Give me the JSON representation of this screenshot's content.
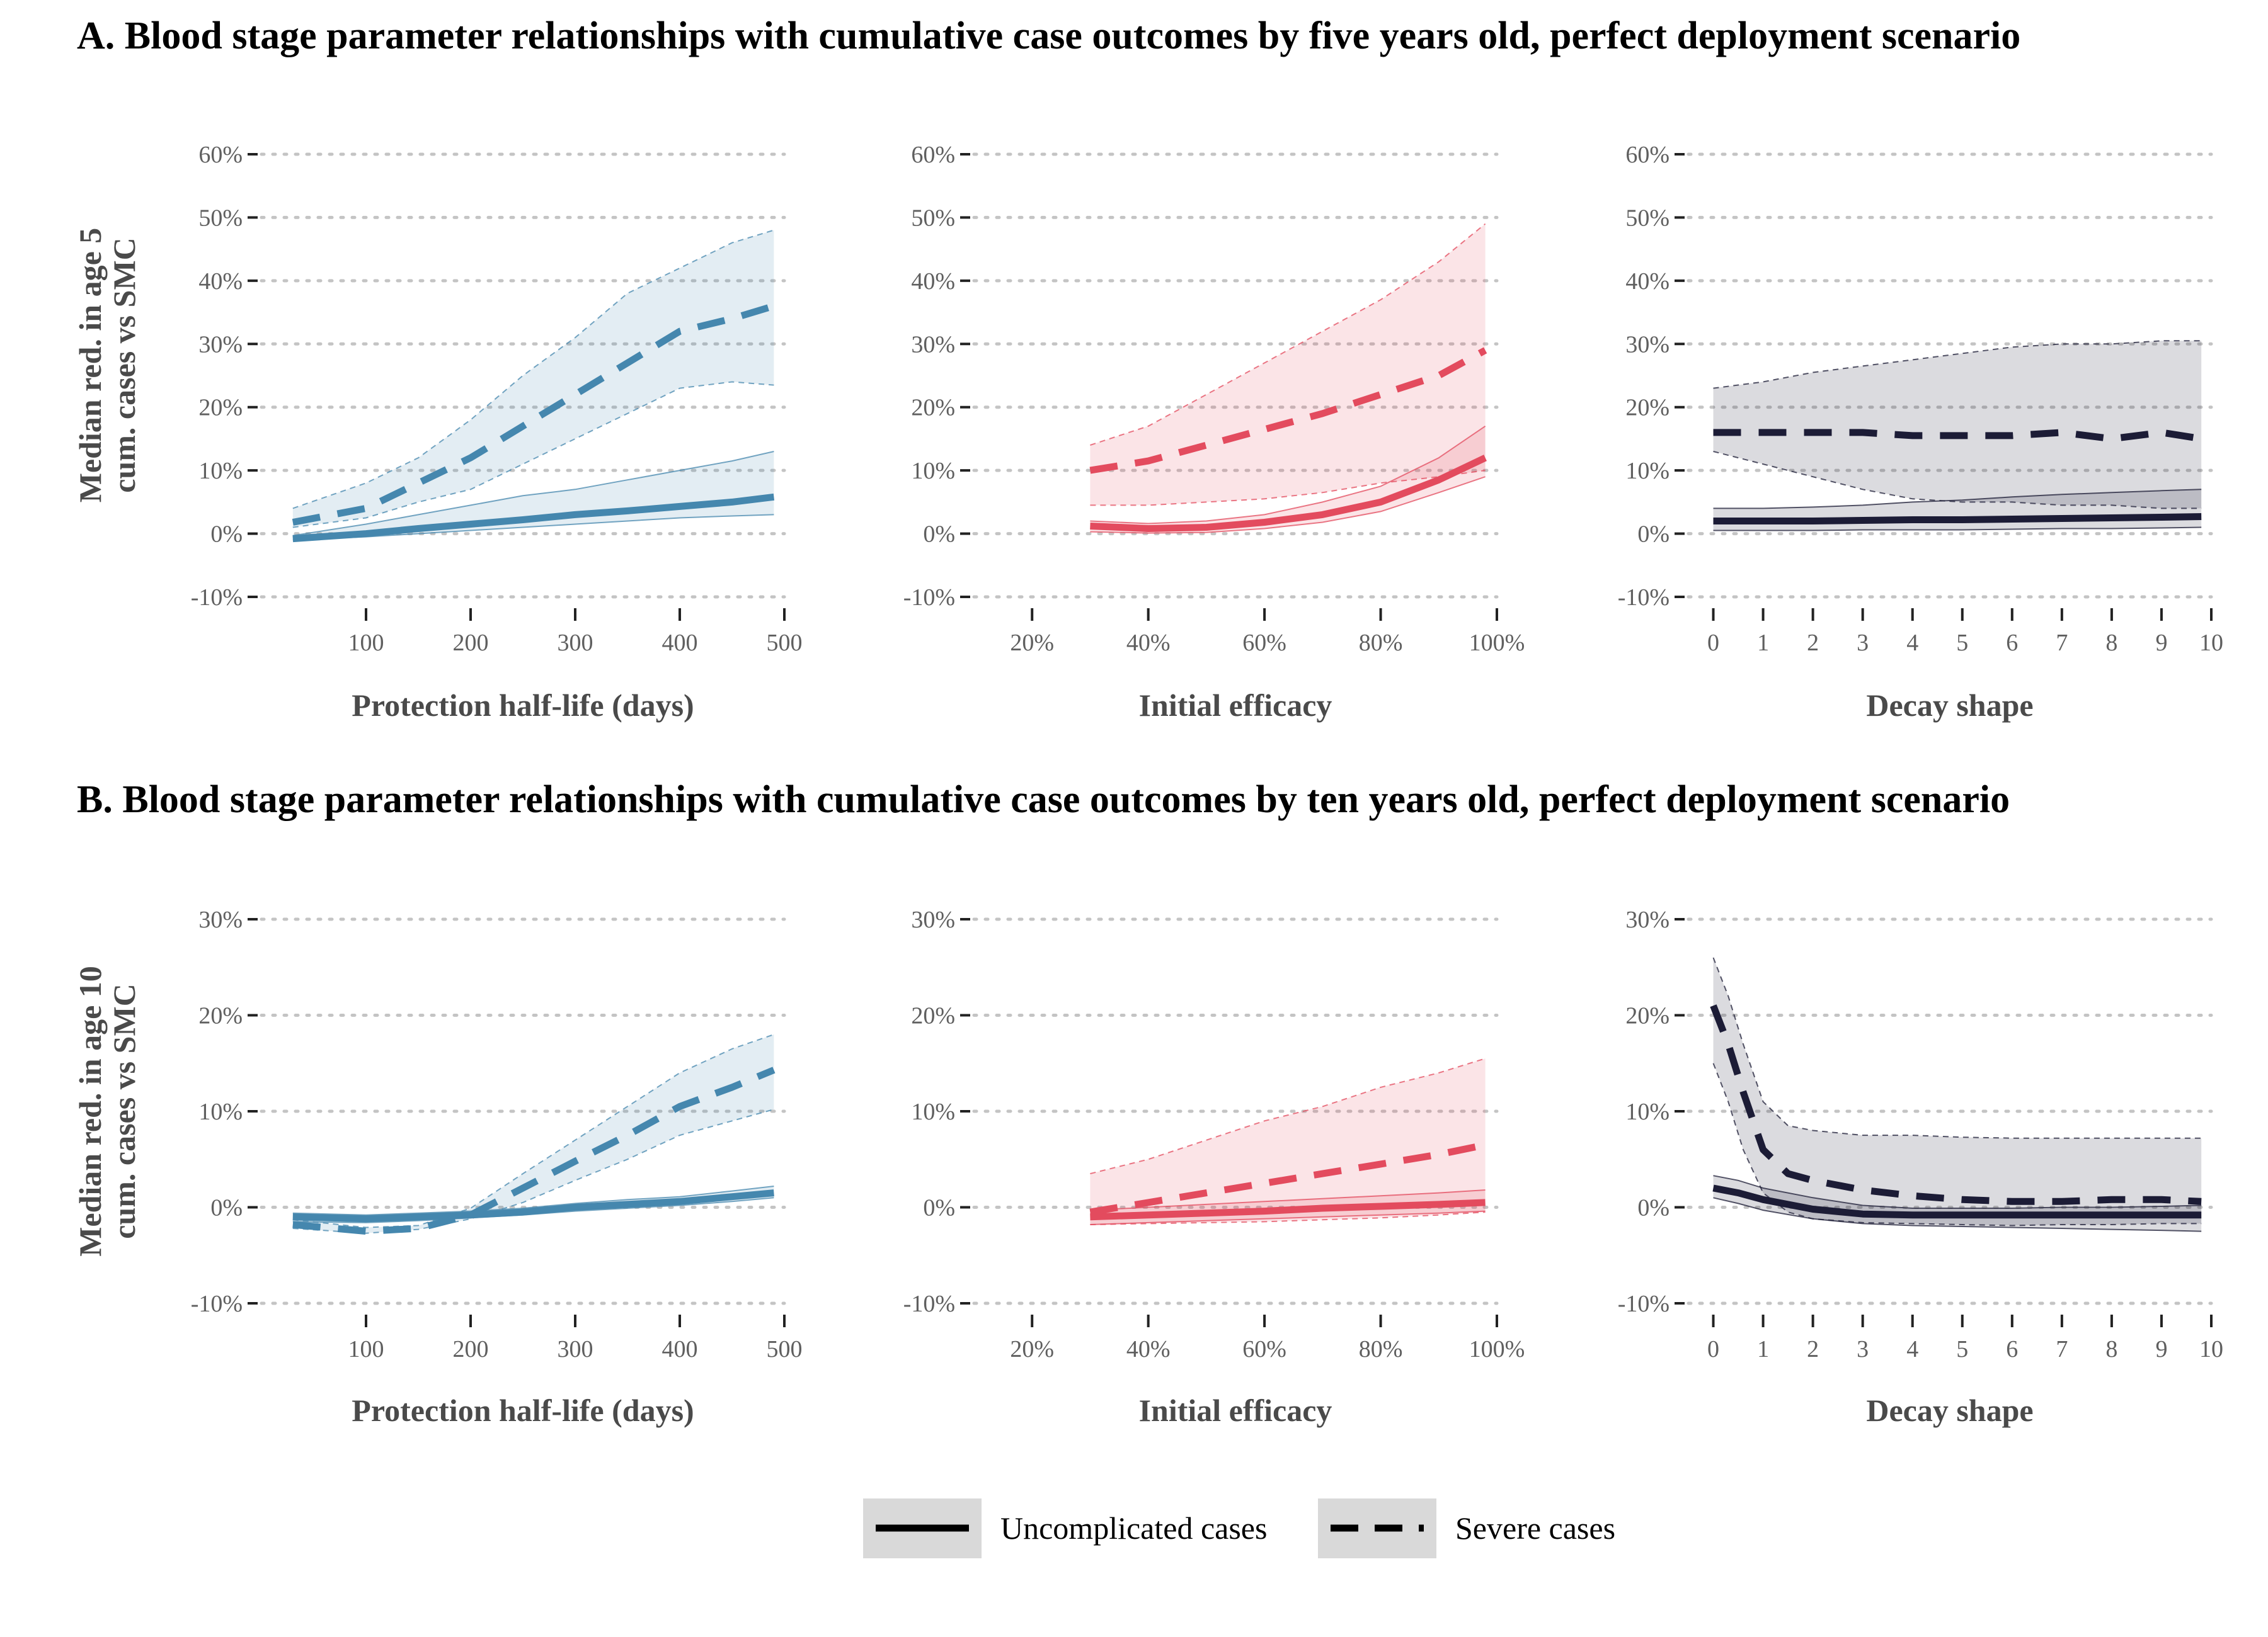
{
  "colors": {
    "blue": "#4587ae",
    "red": "#e34b5e",
    "dark": "#1c1c36"
  },
  "legend": {
    "items": [
      {
        "label": "Uncomplicated cases",
        "linestyle": "solid"
      },
      {
        "label": "Severe cases",
        "linestyle": "dashed"
      }
    ]
  },
  "chart_data": [
    {
      "id": "A",
      "row": 0,
      "col": 0,
      "type": "line",
      "color": "#4587ae",
      "row_title": "A. Blood stage parameter relationships with cumulative case outcomes by five years old, perfect deployment scenario",
      "ylabel": [
        "Median red. in age 5",
        "cum. cases vs SMC"
      ],
      "xlabel": "Protection half-life (days)",
      "xlim": [
        0,
        500
      ],
      "xticks": [
        100,
        200,
        300,
        400,
        500
      ],
      "xtick_labels": [
        "100",
        "200",
        "300",
        "400",
        "500"
      ],
      "ylim": [
        -10,
        60
      ],
      "yticks": [
        -10,
        0,
        10,
        20,
        30,
        40,
        50,
        60
      ],
      "ytick_labels": [
        "-10%",
        "0%",
        "10%",
        "20%",
        "30%",
        "40%",
        "50%",
        "60%"
      ],
      "grid": true,
      "series": [
        {
          "name": "Uncomplicated cases",
          "linestyle": "solid",
          "x": [
            30,
            100,
            150,
            200,
            250,
            300,
            350,
            400,
            450,
            490
          ],
          "median": [
            -0.8,
            0,
            0.8,
            1.5,
            2.2,
            3.0,
            3.6,
            4.3,
            5.0,
            5.8
          ],
          "lower": [
            -1.0,
            -0.5,
            0,
            0.5,
            1.0,
            1.5,
            2.0,
            2.5,
            2.8,
            3.0
          ],
          "upper": [
            -0.3,
            1.5,
            3,
            4.5,
            6,
            7,
            8.5,
            10,
            11.5,
            13
          ]
        },
        {
          "name": "Severe cases",
          "linestyle": "dashed",
          "x": [
            30,
            100,
            150,
            200,
            250,
            300,
            350,
            400,
            450,
            490
          ],
          "median": [
            1.8,
            4,
            8,
            12,
            17,
            22,
            27,
            32,
            34,
            36
          ],
          "lower": [
            1,
            2.5,
            5,
            7,
            11,
            15,
            19,
            23,
            24,
            23.5
          ],
          "upper": [
            4,
            8,
            12,
            18,
            25,
            31,
            38,
            42,
            46,
            48
          ]
        }
      ]
    },
    {
      "id": "A",
      "row": 0,
      "col": 1,
      "type": "line",
      "color": "#e34b5e",
      "xlabel": "Initial efficacy",
      "xlim": [
        0.1,
        1.0
      ],
      "xticks": [
        0.2,
        0.4,
        0.6,
        0.8,
        1.0
      ],
      "xtick_labels": [
        "20%",
        "40%",
        "60%",
        "80%",
        "100%"
      ],
      "ylim": [
        -10,
        60
      ],
      "yticks": [
        -10,
        0,
        10,
        20,
        30,
        40,
        50,
        60
      ],
      "ytick_labels": [
        "-10%",
        "0%",
        "10%",
        "20%",
        "30%",
        "40%",
        "50%",
        "60%"
      ],
      "grid": true,
      "series": [
        {
          "name": "Uncomplicated cases",
          "linestyle": "solid",
          "x": [
            0.3,
            0.4,
            0.5,
            0.6,
            0.7,
            0.8,
            0.9,
            0.98
          ],
          "median": [
            1.2,
            0.8,
            1.0,
            1.8,
            3.0,
            5.0,
            8.5,
            12
          ],
          "lower": [
            0.3,
            0.1,
            0.2,
            0.8,
            1.8,
            3.5,
            6.5,
            9
          ],
          "upper": [
            2.0,
            1.6,
            2.0,
            3.0,
            5.0,
            7.5,
            12,
            17
          ]
        },
        {
          "name": "Severe cases",
          "linestyle": "dashed",
          "x": [
            0.3,
            0.4,
            0.5,
            0.6,
            0.7,
            0.8,
            0.9,
            0.98
          ],
          "median": [
            10,
            11.5,
            14,
            16.5,
            19,
            22,
            25,
            29
          ],
          "lower": [
            4.5,
            4.5,
            5,
            5.5,
            6.5,
            8,
            9,
            10
          ],
          "upper": [
            14,
            17,
            22,
            27,
            32,
            37,
            43,
            49
          ]
        }
      ]
    },
    {
      "id": "A",
      "row": 0,
      "col": 2,
      "type": "line",
      "color": "#1c1c36",
      "xlabel": "Decay shape",
      "xlim": [
        -0.5,
        10
      ],
      "xticks": [
        0,
        1,
        2,
        3,
        4,
        5,
        6,
        7,
        8,
        9,
        10
      ],
      "xtick_labels": [
        "0",
        "1",
        "2",
        "3",
        "4",
        "5",
        "6",
        "7",
        "8",
        "9",
        "10"
      ],
      "ylim": [
        -10,
        60
      ],
      "yticks": [
        -10,
        0,
        10,
        20,
        30,
        40,
        50,
        60
      ],
      "ytick_labels": [
        "-10%",
        "0%",
        "10%",
        "20%",
        "30%",
        "40%",
        "50%",
        "60%"
      ],
      "grid": true,
      "series": [
        {
          "name": "Uncomplicated cases",
          "linestyle": "solid",
          "x": [
            0,
            1,
            2,
            3,
            4,
            5,
            6,
            7,
            8,
            9,
            9.8
          ],
          "median": [
            2.0,
            2.0,
            2.0,
            2.1,
            2.2,
            2.2,
            2.3,
            2.4,
            2.5,
            2.6,
            2.7
          ],
          "lower": [
            0.5,
            0.5,
            0.5,
            0.6,
            0.6,
            0.6,
            0.7,
            0.8,
            0.8,
            0.9,
            1.0
          ],
          "upper": [
            4.0,
            4.0,
            4.2,
            4.5,
            5.0,
            5.3,
            5.8,
            6.2,
            6.5,
            6.8,
            7.0
          ]
        },
        {
          "name": "Severe cases",
          "linestyle": "dashed",
          "x": [
            0,
            1,
            2,
            3,
            4,
            5,
            6,
            7,
            8,
            9,
            9.8
          ],
          "median": [
            16,
            16,
            16,
            16,
            15.5,
            15.5,
            15.5,
            16,
            15,
            16,
            15
          ],
          "lower": [
            13,
            11,
            9,
            7,
            5.5,
            5,
            5,
            4.5,
            4.5,
            4,
            4
          ],
          "upper": [
            23,
            24,
            25.5,
            26.5,
            27.5,
            28.5,
            29.5,
            30,
            30,
            30.5,
            30.5
          ]
        }
      ]
    },
    {
      "id": "B",
      "row": 1,
      "col": 0,
      "type": "line",
      "color": "#4587ae",
      "row_title": "B. Blood stage parameter relationships with cumulative case outcomes by ten years old, perfect deployment scenario",
      "ylabel": [
        "Median red. in age 10",
        "cum. cases vs SMC"
      ],
      "xlabel": "Protection half-life (days)",
      "xlim": [
        0,
        500
      ],
      "xticks": [
        100,
        200,
        300,
        400,
        500
      ],
      "xtick_labels": [
        "100",
        "200",
        "300",
        "400",
        "500"
      ],
      "ylim": [
        -10,
        30
      ],
      "yticks": [
        -10,
        0,
        10,
        20,
        30
      ],
      "ytick_labels": [
        "-10%",
        "0%",
        "10%",
        "20%",
        "30%"
      ],
      "grid": true,
      "series": [
        {
          "name": "Uncomplicated cases",
          "linestyle": "solid",
          "x": [
            30,
            100,
            150,
            200,
            250,
            300,
            350,
            400,
            450,
            490
          ],
          "median": [
            -1.0,
            -1.2,
            -1.0,
            -0.8,
            -0.5,
            0,
            0.3,
            0.6,
            1.1,
            1.5
          ],
          "lower": [
            -1.5,
            -1.6,
            -1.4,
            -1.1,
            -0.8,
            -0.4,
            -0.1,
            0.2,
            0.6,
            1.0
          ],
          "upper": [
            -0.6,
            -0.8,
            -0.6,
            -0.4,
            -0.1,
            0.4,
            0.8,
            1.1,
            1.7,
            2.2
          ]
        },
        {
          "name": "Severe cases",
          "linestyle": "dashed",
          "x": [
            30,
            100,
            150,
            200,
            250,
            300,
            350,
            400,
            450,
            490
          ],
          "median": [
            -1.8,
            -2.5,
            -2.2,
            -0.8,
            2,
            4.8,
            7.5,
            10.5,
            12.5,
            14.3
          ],
          "lower": [
            -2.2,
            -2.7,
            -2.3,
            -1.2,
            0.5,
            2.8,
            5,
            7.5,
            9,
            10.2
          ],
          "upper": [
            -1.3,
            -2.1,
            -1.9,
            -0.1,
            3.5,
            7,
            10.5,
            14,
            16.5,
            18
          ]
        }
      ]
    },
    {
      "id": "B",
      "row": 1,
      "col": 1,
      "type": "line",
      "color": "#e34b5e",
      "xlabel": "Initial efficacy",
      "xlim": [
        0.1,
        1.0
      ],
      "xticks": [
        0.2,
        0.4,
        0.6,
        0.8,
        1.0
      ],
      "xtick_labels": [
        "20%",
        "40%",
        "60%",
        "80%",
        "100%"
      ],
      "ylim": [
        -10,
        30
      ],
      "yticks": [
        -10,
        0,
        10,
        20,
        30
      ],
      "ytick_labels": [
        "-10%",
        "0%",
        "10%",
        "20%",
        "30%"
      ],
      "grid": true,
      "series": [
        {
          "name": "Uncomplicated cases",
          "linestyle": "solid",
          "x": [
            0.3,
            0.4,
            0.5,
            0.6,
            0.7,
            0.8,
            0.9,
            0.98
          ],
          "median": [
            -1.0,
            -0.8,
            -0.6,
            -0.4,
            -0.1,
            0.1,
            0.3,
            0.5
          ],
          "lower": [
            -1.8,
            -1.6,
            -1.4,
            -1.2,
            -1.0,
            -0.8,
            -0.6,
            -0.4
          ],
          "upper": [
            -0.3,
            0,
            0.3,
            0.6,
            0.9,
            1.2,
            1.5,
            1.8
          ]
        },
        {
          "name": "Severe cases",
          "linestyle": "dashed",
          "x": [
            0.3,
            0.4,
            0.5,
            0.6,
            0.7,
            0.8,
            0.9,
            0.98
          ],
          "median": [
            -0.5,
            0.5,
            1.5,
            2.5,
            3.5,
            4.5,
            5.5,
            6.5
          ],
          "lower": [
            -1.8,
            -1.7,
            -1.6,
            -1.5,
            -1.3,
            -1.1,
            -0.8,
            -0.5
          ],
          "upper": [
            3.5,
            5,
            7,
            9,
            10.5,
            12.5,
            14,
            15.5
          ]
        }
      ]
    },
    {
      "id": "B",
      "row": 1,
      "col": 2,
      "type": "line",
      "color": "#1c1c36",
      "xlabel": "Decay shape",
      "xlim": [
        -0.5,
        10
      ],
      "xticks": [
        0,
        1,
        2,
        3,
        4,
        5,
        6,
        7,
        8,
        9,
        10
      ],
      "xtick_labels": [
        "0",
        "1",
        "2",
        "3",
        "4",
        "5",
        "6",
        "7",
        "8",
        "9",
        "10"
      ],
      "ylim": [
        -10,
        30
      ],
      "yticks": [
        -10,
        0,
        10,
        20,
        30
      ],
      "ytick_labels": [
        "-10%",
        "0%",
        "10%",
        "20%",
        "30%"
      ],
      "grid": true,
      "series": [
        {
          "name": "Uncomplicated cases",
          "linestyle": "solid",
          "x": [
            0,
            0.5,
            1,
            2,
            3,
            4,
            5,
            6,
            7,
            8,
            9,
            9.8
          ],
          "median": [
            2,
            1.5,
            0.8,
            -0.2,
            -0.7,
            -0.8,
            -0.8,
            -0.8,
            -0.8,
            -0.8,
            -0.8,
            -0.8
          ],
          "lower": [
            1,
            0.4,
            -0.3,
            -1.2,
            -1.7,
            -1.9,
            -2.0,
            -2.1,
            -2.2,
            -2.3,
            -2.4,
            -2.5
          ],
          "upper": [
            3.3,
            2.8,
            2.0,
            1.0,
            0.2,
            -0.1,
            -0.1,
            -0.1,
            0,
            0,
            0.1,
            0.2
          ]
        },
        {
          "name": "Severe cases",
          "linestyle": "dashed",
          "x": [
            0,
            0.3,
            0.6,
            1,
            1.5,
            2,
            3,
            4,
            5,
            6,
            7,
            8,
            9,
            9.8
          ],
          "median": [
            21,
            17,
            12,
            6,
            3.5,
            2.8,
            1.8,
            1.2,
            0.8,
            0.6,
            0.6,
            0.8,
            0.8,
            0.6
          ],
          "lower": [
            15,
            11,
            6,
            1.5,
            -0.5,
            -1.2,
            -1.6,
            -1.7,
            -1.8,
            -1.9,
            -1.8,
            -1.8,
            -1.7,
            -1.7
          ],
          "upper": [
            26,
            22,
            17,
            11,
            8.5,
            8,
            7.5,
            7.5,
            7.3,
            7.2,
            7.2,
            7.2,
            7.2,
            7.2
          ]
        }
      ]
    }
  ]
}
